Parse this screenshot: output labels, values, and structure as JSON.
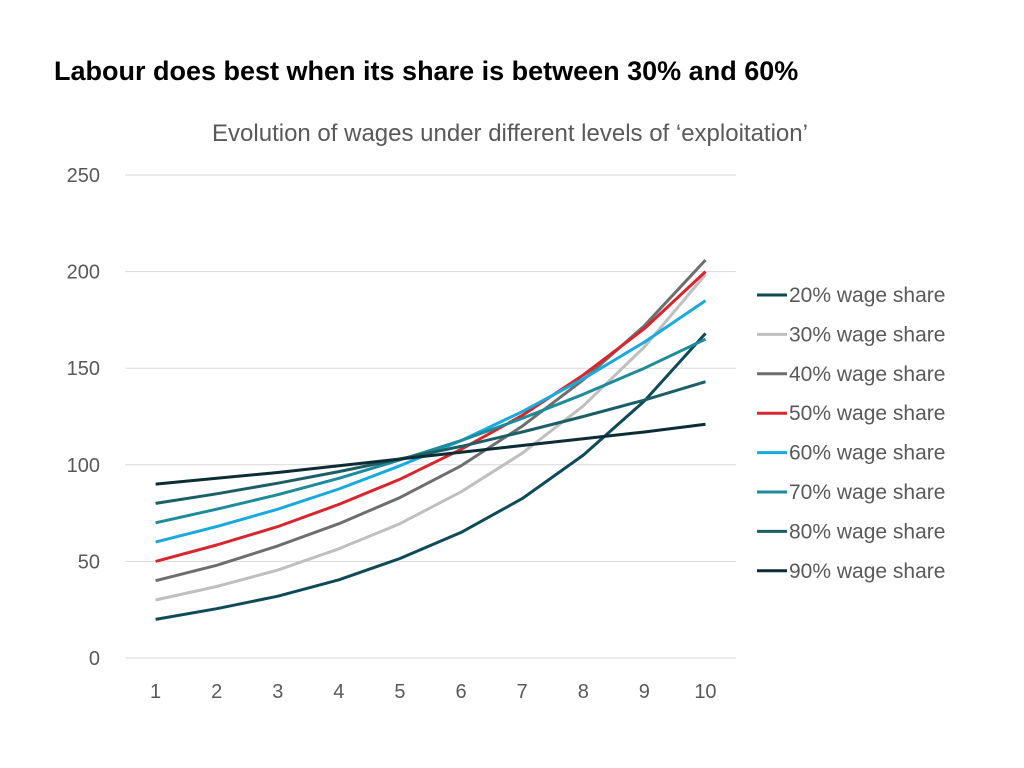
{
  "slide": {
    "title": "Labour does best when its share is between 30% and 60%"
  },
  "chart_data": {
    "type": "line",
    "title": "Evolution of wages under different levels of ‘exploitation’",
    "xlabel": "",
    "ylabel": "",
    "x": [
      1,
      2,
      3,
      4,
      5,
      6,
      7,
      8,
      9,
      10
    ],
    "ylim": [
      0,
      250
    ],
    "yticks": [
      0,
      50,
      100,
      150,
      200,
      250
    ],
    "grid": true,
    "legend_position": "right",
    "series": [
      {
        "name": "20% wage share",
        "color": "#0E4B57",
        "values": [
          20,
          25.5,
          32,
          40.5,
          51.5,
          65,
          82.5,
          105,
          133,
          168
        ]
      },
      {
        "name": "30% wage share",
        "color": "#BFBFBF",
        "values": [
          30,
          37,
          45.5,
          56.5,
          69.5,
          86,
          106,
          130.5,
          161,
          198.5
        ]
      },
      {
        "name": "40% wage share",
        "color": "#6D6E70",
        "values": [
          40,
          48,
          58,
          69.5,
          83,
          99.5,
          120,
          144,
          172,
          206
        ]
      },
      {
        "name": "50% wage share",
        "color": "#D7262C",
        "values": [
          50,
          58.5,
          68,
          79.5,
          92.5,
          108,
          125.5,
          146.5,
          170.5,
          200
        ]
      },
      {
        "name": "60% wage share",
        "color": "#19A9DC",
        "values": [
          60,
          68,
          77,
          87.5,
          99.5,
          112.5,
          127.5,
          144.5,
          163.5,
          185
        ]
      },
      {
        "name": "70% wage share",
        "color": "#1E8B98",
        "values": [
          70,
          77,
          84.5,
          93,
          102.5,
          112.5,
          124,
          136.5,
          150,
          165
        ]
      },
      {
        "name": "80% wage share",
        "color": "#1C5E66",
        "values": [
          80,
          85,
          90.5,
          96.5,
          103,
          109.5,
          117,
          125,
          133.5,
          143
        ]
      },
      {
        "name": "90% wage share",
        "color": "#0B2D33",
        "values": [
          90,
          93,
          96,
          99.5,
          103,
          106.5,
          110,
          113.5,
          117,
          121
        ]
      }
    ]
  }
}
